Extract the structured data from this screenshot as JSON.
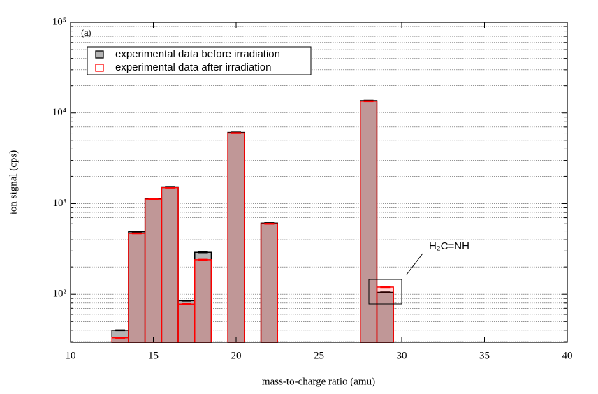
{
  "chart_data": {
    "type": "bar",
    "log_y": true,
    "xlabel": "mass-to-charge ratio (amu)",
    "ylabel": "ion signal (cps)",
    "annotations": [
      "(a)",
      "H₂C=NH"
    ],
    "x": [
      13,
      14,
      15,
      16,
      17,
      18,
      20,
      22,
      28,
      29
    ],
    "series": [
      {
        "name": "experimental data before irradiation",
        "color": "#b4b4b4",
        "values": [
          40,
          490,
          1130,
          1530,
          85,
          290,
          6100,
          610,
          13700,
          105
        ]
      },
      {
        "name": "experimental data after irradiation",
        "color": "#ff0000",
        "values": [
          33,
          470,
          1120,
          1500,
          78,
          240,
          6000,
          600,
          13500,
          120
        ]
      }
    ],
    "xlim": [
      10,
      40
    ],
    "xticks": [
      10,
      15,
      20,
      25,
      30,
      35,
      40
    ],
    "ylim": [
      29.5,
      100000
    ],
    "yticks": [
      {
        "value": 100,
        "label": "10²"
      },
      {
        "value": 1000,
        "label": "10³"
      },
      {
        "value": 10000,
        "label": "10⁴"
      },
      {
        "value": 100000,
        "label": "10⁵"
      }
    ],
    "yminorticks": [
      30,
      40,
      50,
      60,
      70,
      80,
      90,
      200,
      300,
      400,
      500,
      600,
      700,
      800,
      900,
      2000,
      3000,
      4000,
      5000,
      6000,
      7000,
      8000,
      9000,
      20000,
      30000,
      40000,
      50000,
      60000,
      70000,
      80000,
      90000
    ],
    "grid": true,
    "legend": "upper left"
  }
}
